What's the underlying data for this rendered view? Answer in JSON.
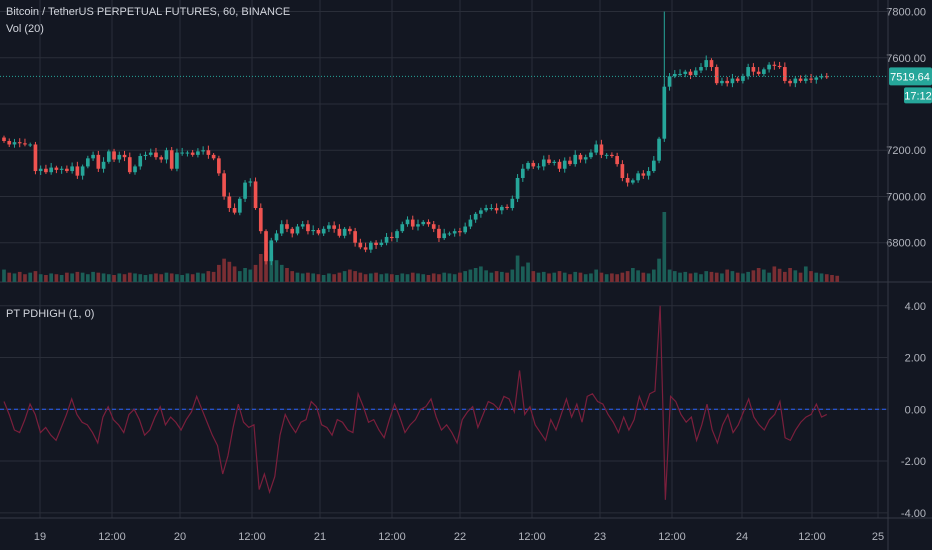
{
  "header": {
    "symbol_line": "Bitcoin / TetherUS PERPETUAL FUTURES, 60, BINANCE",
    "volume_label": "Vol (20)"
  },
  "indicator": {
    "label": "PT PDHIGH (1, 0)"
  },
  "price_tag": {
    "value": "7519.64",
    "countdown": "17:12"
  },
  "colors": {
    "background": "#131722",
    "grid": "#2a2e39",
    "up": "#26a69a",
    "down": "#ef5350",
    "up_volume": "#1b5e57",
    "down_volume": "#7a2e33",
    "indicator_line": "#7b1f3c",
    "zero_line": "#2962ff",
    "text": "#b2b5be"
  },
  "chart_data": [
    {
      "type": "candlestick",
      "title": "Bitcoin / TetherUS PERPETUAL FUTURES, 60, BINANCE",
      "ylim": [
        6630,
        7850
      ],
      "yticks": [
        "7800.00",
        "7600.00",
        "7200.00",
        "7000.00",
        "6800.00"
      ],
      "xticks": [
        "19",
        "12:00",
        "20",
        "12:00",
        "21",
        "12:00",
        "22",
        "12:00",
        "23",
        "12:00",
        "24",
        "12:00",
        "25"
      ],
      "last_price": 7519.64,
      "closes": [
        7240,
        7225,
        7235,
        7230,
        7225,
        7225,
        7110,
        7120,
        7105,
        7125,
        7115,
        7120,
        7110,
        7130,
        7090,
        7130,
        7165,
        7180,
        7120,
        7150,
        7195,
        7160,
        7180,
        7170,
        7105,
        7130,
        7175,
        7180,
        7190,
        7170,
        7160,
        7200,
        7120,
        7190,
        7190,
        7190,
        7180,
        7195,
        7200,
        7180,
        7165,
        7100,
        7000,
        6950,
        6930,
        6990,
        7060,
        7065,
        6950,
        6850,
        6720,
        6810,
        6840,
        6880,
        6860,
        6840,
        6870,
        6880,
        6850,
        6855,
        6840,
        6860,
        6875,
        6860,
        6830,
        6860,
        6850,
        6800,
        6780,
        6770,
        6800,
        6790,
        6800,
        6825,
        6820,
        6850,
        6880,
        6900,
        6870,
        6880,
        6890,
        6880,
        6860,
        6820,
        6840,
        6840,
        6850,
        6845,
        6870,
        6900,
        6925,
        6940,
        6950,
        6950,
        6940,
        6955,
        6950,
        6990,
        7080,
        7120,
        7145,
        7130,
        7130,
        7160,
        7145,
        7150,
        7120,
        7155,
        7140,
        7180,
        7160,
        7170,
        7190,
        7225,
        7180,
        7180,
        7175,
        7140,
        7080,
        7060,
        7070,
        7100,
        7090,
        7110,
        7155,
        7250,
        7475,
        7520,
        7530,
        7530,
        7540,
        7525,
        7545,
        7560,
        7590,
        7560,
        7490,
        7500,
        7490,
        7510,
        7500,
        7520,
        7560,
        7540,
        7530,
        7550,
        7570,
        7565,
        7560,
        7500,
        7490,
        7510,
        7500,
        7510,
        7505,
        7515,
        7520,
        7519.64
      ],
      "volume": {
        "label": "Vol (20)",
        "values": [
          16,
          12,
          11,
          13,
          10,
          12,
          14,
          10,
          9,
          11,
          10,
          9,
          12,
          11,
          13,
          12,
          10,
          13,
          12,
          11,
          10,
          9,
          11,
          10,
          12,
          11,
          10,
          9,
          10,
          11,
          10,
          12,
          11,
          10,
          9,
          11,
          10,
          12,
          11,
          14,
          13,
          22,
          30,
          26,
          20,
          14,
          18,
          16,
          22,
          36,
          40,
          34,
          28,
          22,
          18,
          14,
          12,
          11,
          12,
          11,
          10,
          9,
          11,
          10,
          12,
          14,
          16,
          14,
          12,
          10,
          11,
          12,
          10,
          11,
          10,
          9,
          11,
          10,
          12,
          11,
          10,
          9,
          11,
          10,
          12,
          11,
          10,
          12,
          14,
          16,
          18,
          20,
          15,
          12,
          14,
          13,
          12,
          16,
          34,
          20,
          25,
          14,
          12,
          13,
          11,
          12,
          14,
          12,
          10,
          13,
          12,
          10,
          11,
          16,
          12,
          10,
          11,
          10,
          12,
          14,
          18,
          15,
          12,
          11,
          16,
          30,
          90,
          16,
          14,
          12,
          13,
          11,
          12,
          10,
          14,
          13,
          12,
          11,
          16,
          14,
          12,
          11,
          13,
          15,
          18,
          16,
          12,
          20,
          17,
          13,
          18,
          15,
          12,
          20,
          14,
          12,
          11,
          10,
          9,
          8
        ]
      }
    },
    {
      "type": "line",
      "title": "PT PDHIGH (1, 0)",
      "ylim": [
        -4.2,
        4.3
      ],
      "yticks": [
        "4.00",
        "2.00",
        "0.00",
        "-2.00",
        "-4.00"
      ],
      "zero_line": 0,
      "values": [
        0.3,
        -0.2,
        -0.8,
        -0.9,
        -0.4,
        0.2,
        -0.2,
        -0.9,
        -0.7,
        -1.0,
        -1.2,
        -0.7,
        -0.2,
        0.4,
        -0.2,
        -0.5,
        -0.6,
        -0.9,
        -1.3,
        -0.3,
        0.1,
        -0.4,
        -0.6,
        -0.9,
        -0.2,
        0.0,
        -0.4,
        -1.0,
        -0.8,
        -0.3,
        0.1,
        -0.6,
        -0.3,
        -0.5,
        -0.8,
        -0.4,
        -0.1,
        0.5,
        0.0,
        -0.5,
        -1.0,
        -1.4,
        -2.5,
        -1.8,
        -0.7,
        0.2,
        -0.5,
        -0.7,
        -0.6,
        -3.1,
        -2.5,
        -3.2,
        -2.6,
        -1.0,
        -0.2,
        -0.6,
        -0.9,
        -0.5,
        -0.4,
        0.3,
        0.1,
        -0.6,
        -0.7,
        -1.0,
        -0.4,
        -0.5,
        -0.8,
        -0.9,
        0.6,
        0.1,
        -0.5,
        -0.4,
        -0.8,
        -1.1,
        -0.4,
        0.2,
        -0.3,
        -0.9,
        -0.6,
        -0.4,
        0.0,
        0.1,
        0.4,
        -0.3,
        -0.8,
        -0.6,
        -0.9,
        -1.3,
        -0.4,
        -0.1,
        0.1,
        -0.7,
        -0.2,
        0.3,
        0.2,
        0.0,
        0.5,
        0.4,
        -0.1,
        1.5,
        -0.2,
        0.1,
        -0.6,
        -0.9,
        -1.2,
        -0.4,
        -0.8,
        -0.2,
        0.4,
        -0.3,
        0.2,
        -0.5,
        0.5,
        0.6,
        0.3,
        0.2,
        -0.2,
        -0.5,
        -0.9,
        -0.3,
        -0.8,
        -0.4,
        0.5,
        0.0,
        0.6,
        0.7,
        4.0,
        -3.5,
        0.5,
        0.3,
        -0.2,
        -0.5,
        -0.3,
        -1.2,
        -0.6,
        0.2,
        -0.8,
        -1.3,
        -0.6,
        -0.2,
        -0.9,
        -0.6,
        -0.1,
        0.4,
        -0.3,
        -0.6,
        -0.8,
        -0.4,
        -0.2,
        0.3,
        -1.1,
        -1.2,
        -0.8,
        -0.5,
        -0.3,
        -0.2,
        0.2,
        -0.3,
        -0.2
      ]
    }
  ]
}
